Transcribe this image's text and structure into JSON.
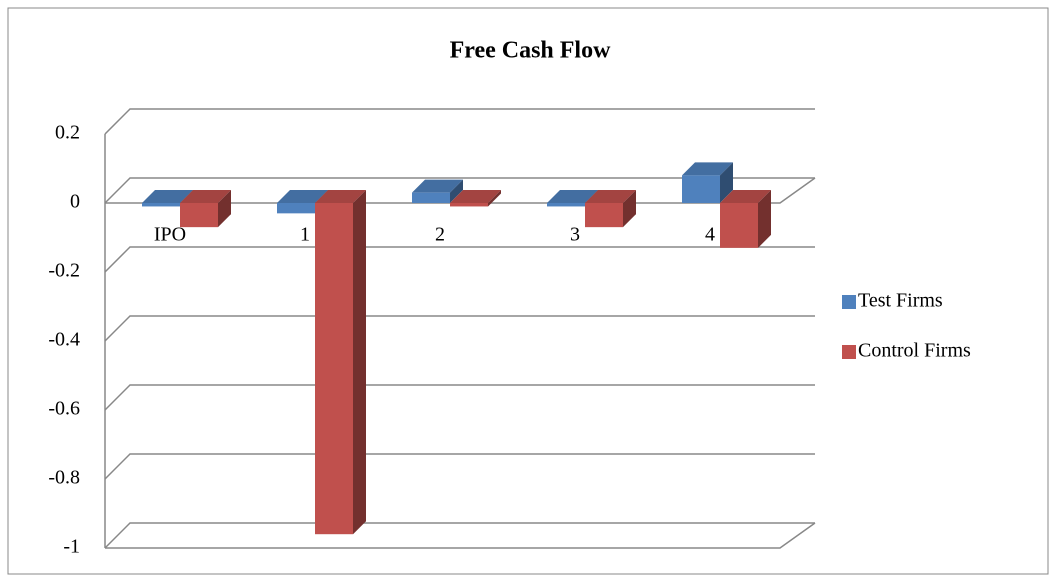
{
  "chart_data": {
    "type": "bar3d",
    "title": "Free Cash Flow",
    "categories": [
      "IPO",
      "1",
      "2",
      "3",
      "4"
    ],
    "series": [
      {
        "name": "Test Firms",
        "color": "#4f81bd",
        "values": [
          -0.01,
          -0.03,
          0.03,
          -0.01,
          0.08
        ]
      },
      {
        "name": "Control Firms",
        "color": "#c0504d",
        "values": [
          -0.07,
          -0.96,
          -0.01,
          -0.07,
          -0.13
        ]
      }
    ],
    "ylim": [
      -1,
      0.2
    ],
    "yticks": [
      -1,
      -0.8,
      -0.6,
      -0.4,
      -0.2,
      0,
      0.2
    ],
    "grid": true,
    "legend": "right"
  }
}
